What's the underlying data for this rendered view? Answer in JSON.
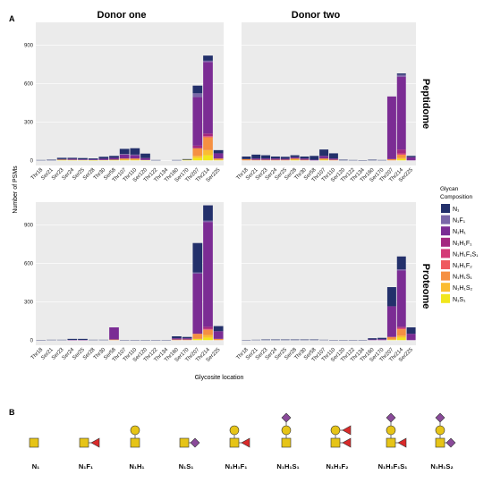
{
  "panel_labels": [
    "A",
    "B"
  ],
  "columns": [
    "Donor one",
    "Donor two"
  ],
  "rows": [
    "Peptidome",
    "Proteome"
  ],
  "legend": {
    "title_lines": [
      "Glycan",
      "Composition"
    ],
    "items": [
      {
        "label": "N₁",
        "color": "#23306b"
      },
      {
        "label": "N₁F₁",
        "color": "#7a67a8"
      },
      {
        "label": "N₁H₁",
        "color": "#7b2c94"
      },
      {
        "label": "N₁H₁F₁",
        "color": "#a4287f"
      },
      {
        "label": "N₁H₁F₁S₁",
        "color": "#d43a77"
      },
      {
        "label": "N₁H₁F₂",
        "color": "#ef5a5f"
      },
      {
        "label": "N₁H₁S₁",
        "color": "#f59042"
      },
      {
        "label": "N₁H₁S₂",
        "color": "#fbbc31"
      },
      {
        "label": "N₁S₁",
        "color": "#f1e61c"
      }
    ]
  },
  "glycans": [
    {
      "label": "N₁"
    },
    {
      "label": "N₁F₁"
    },
    {
      "label": "N₁H₁"
    },
    {
      "label": "N₁S₁"
    },
    {
      "label": "N₁H₁F₁"
    },
    {
      "label": "N₁H₁S₁"
    },
    {
      "label": "N₁H₁F₂"
    },
    {
      "label": "N₁H₁F₁S₁"
    },
    {
      "label": "N₁H₁S₂"
    }
  ],
  "chart_data": {
    "type": "bar",
    "stacked": true,
    "xlabel": "Glycosite location",
    "ylabel": "Number of PSMs",
    "yticks": [
      0,
      300,
      600,
      900
    ],
    "ylim": [
      -40,
      1080
    ],
    "categories": [
      "Thr18",
      "Ser21",
      "Ser23",
      "Ser24",
      "Ser25",
      "Ser28",
      "Thr30",
      "Ser58",
      "Thr107",
      "Thr110",
      "Ser120",
      "Thr122",
      "Thr134",
      "Thr160",
      "Ser170",
      "Thr207",
      "Thr214",
      "Ser225"
    ],
    "series_names": [
      "N₁",
      "N₁F₁",
      "N₁H₁",
      "N₁H₁F₁",
      "N₁H₁F₁S₁",
      "N₁H₁F₂",
      "N₁H₁S₁",
      "N₁H₁S₂",
      "N₁S₁"
    ],
    "panels": [
      {
        "row": "Peptidome",
        "column": "Donor one",
        "stacks": [
          [
            3,
            0,
            0,
            0,
            0,
            0,
            0,
            0,
            0
          ],
          [
            5,
            0,
            0,
            0,
            0,
            0,
            0,
            0,
            0
          ],
          [
            10,
            0,
            5,
            0,
            0,
            0,
            0,
            0,
            5
          ],
          [
            8,
            0,
            8,
            0,
            0,
            0,
            0,
            0,
            4
          ],
          [
            10,
            0,
            5,
            0,
            0,
            0,
            0,
            0,
            3
          ],
          [
            8,
            0,
            5,
            0,
            0,
            0,
            0,
            0,
            2
          ],
          [
            15,
            0,
            10,
            0,
            0,
            0,
            0,
            0,
            3
          ],
          [
            15,
            0,
            15,
            0,
            0,
            0,
            0,
            0,
            5
          ],
          [
            40,
            5,
            30,
            0,
            0,
            0,
            10,
            0,
            5
          ],
          [
            50,
            5,
            25,
            0,
            0,
            0,
            10,
            0,
            5
          ],
          [
            35,
            0,
            15,
            0,
            0,
            0,
            0,
            0,
            3
          ],
          [
            3,
            0,
            0,
            0,
            0,
            0,
            0,
            0,
            0
          ],
          [
            0,
            0,
            0,
            0,
            0,
            0,
            0,
            0,
            0
          ],
          [
            3,
            0,
            0,
            0,
            0,
            0,
            0,
            0,
            0
          ],
          [
            5,
            0,
            0,
            0,
            0,
            0,
            0,
            0,
            5
          ],
          [
            60,
            30,
            380,
            20,
            0,
            0,
            60,
            15,
            20
          ],
          [
            40,
            10,
            560,
            20,
            5,
            5,
            100,
            40,
            40
          ],
          [
            25,
            0,
            40,
            0,
            0,
            0,
            10,
            0,
            5
          ]
        ]
      },
      {
        "row": "Peptidome",
        "column": "Donor two",
        "stacks": [
          [
            20,
            0,
            0,
            0,
            0,
            0,
            10,
            0,
            0
          ],
          [
            30,
            0,
            10,
            0,
            0,
            0,
            5,
            0,
            0
          ],
          [
            25,
            0,
            10,
            0,
            0,
            0,
            5,
            0,
            0
          ],
          [
            15,
            0,
            10,
            0,
            0,
            0,
            5,
            0,
            0
          ],
          [
            15,
            0,
            8,
            0,
            0,
            0,
            5,
            0,
            0
          ],
          [
            15,
            0,
            10,
            0,
            0,
            0,
            10,
            0,
            5
          ],
          [
            15,
            0,
            10,
            0,
            0,
            0,
            5,
            0,
            0
          ],
          [
            30,
            0,
            5,
            0,
            0,
            0,
            0,
            0,
            0
          ],
          [
            50,
            0,
            20,
            0,
            0,
            0,
            10,
            0,
            5
          ],
          [
            40,
            0,
            10,
            0,
            0,
            0,
            5,
            0,
            0
          ],
          [
            5,
            0,
            0,
            0,
            0,
            0,
            0,
            0,
            0
          ],
          [
            3,
            0,
            0,
            0,
            0,
            0,
            0,
            0,
            0
          ],
          [
            2,
            0,
            0,
            0,
            0,
            0,
            0,
            0,
            0
          ],
          [
            5,
            0,
            0,
            0,
            0,
            0,
            0,
            0,
            0
          ],
          [
            3,
            0,
            0,
            0,
            0,
            0,
            0,
            0,
            0
          ],
          [
            0,
            0,
            490,
            0,
            0,
            0,
            10,
            0,
            0
          ],
          [
            10,
            15,
            570,
            30,
            10,
            0,
            25,
            10,
            10
          ],
          [
            10,
            0,
            25,
            0,
            0,
            0,
            0,
            0,
            0
          ]
        ]
      },
      {
        "row": "Proteome",
        "column": "Donor one",
        "stacks": [
          [
            2,
            0,
            0,
            0,
            0,
            0,
            0,
            0,
            0
          ],
          [
            3,
            0,
            0,
            0,
            0,
            0,
            0,
            0,
            0
          ],
          [
            3,
            0,
            0,
            0,
            0,
            0,
            0,
            0,
            0
          ],
          [
            8,
            0,
            2,
            0,
            0,
            0,
            0,
            0,
            0
          ],
          [
            8,
            0,
            2,
            0,
            0,
            0,
            0,
            0,
            0
          ],
          [
            3,
            0,
            0,
            0,
            0,
            0,
            0,
            0,
            0
          ],
          [
            3,
            0,
            0,
            0,
            0,
            0,
            0,
            0,
            0
          ],
          [
            0,
            0,
            95,
            0,
            0,
            0,
            5,
            0,
            0
          ],
          [
            2,
            0,
            0,
            0,
            0,
            0,
            0,
            0,
            0
          ],
          [
            2,
            0,
            0,
            0,
            0,
            0,
            0,
            0,
            0
          ],
          [
            2,
            0,
            0,
            0,
            0,
            0,
            0,
            0,
            0
          ],
          [
            2,
            0,
            0,
            0,
            0,
            0,
            0,
            0,
            0
          ],
          [
            2,
            0,
            0,
            0,
            0,
            0,
            0,
            0,
            0
          ],
          [
            15,
            0,
            10,
            0,
            0,
            0,
            5,
            0,
            0
          ],
          [
            10,
            0,
            10,
            0,
            0,
            0,
            5,
            0,
            0
          ],
          [
            230,
            10,
            470,
            0,
            0,
            0,
            40,
            0,
            10
          ],
          [
            120,
            10,
            820,
            15,
            5,
            5,
            40,
            20,
            20
          ],
          [
            40,
            0,
            60,
            0,
            0,
            0,
            10,
            0,
            0
          ]
        ]
      },
      {
        "row": "Proteome",
        "column": "Donor two",
        "stacks": [
          [
            2,
            0,
            0,
            0,
            0,
            0,
            0,
            0,
            0
          ],
          [
            3,
            0,
            0,
            0,
            0,
            0,
            0,
            0,
            0
          ],
          [
            5,
            0,
            0,
            0,
            0,
            0,
            0,
            0,
            0
          ],
          [
            5,
            0,
            0,
            0,
            0,
            0,
            0,
            0,
            0
          ],
          [
            5,
            0,
            0,
            0,
            0,
            0,
            0,
            0,
            0
          ],
          [
            5,
            0,
            0,
            0,
            0,
            0,
            0,
            0,
            0
          ],
          [
            5,
            0,
            0,
            0,
            0,
            0,
            0,
            0,
            0
          ],
          [
            5,
            0,
            0,
            0,
            0,
            0,
            0,
            0,
            0
          ],
          [
            3,
            0,
            0,
            0,
            0,
            0,
            0,
            0,
            0
          ],
          [
            2,
            0,
            0,
            0,
            0,
            0,
            0,
            0,
            0
          ],
          [
            2,
            0,
            0,
            0,
            0,
            0,
            0,
            0,
            0
          ],
          [
            2,
            0,
            0,
            0,
            0,
            0,
            0,
            0,
            0
          ],
          [
            2,
            0,
            0,
            0,
            0,
            0,
            0,
            0,
            0
          ],
          [
            10,
            0,
            5,
            0,
            0,
            0,
            0,
            0,
            0
          ],
          [
            10,
            0,
            8,
            0,
            0,
            0,
            0,
            0,
            0
          ],
          [
            150,
            0,
            240,
            0,
            0,
            0,
            20,
            0,
            5
          ],
          [
            100,
            10,
            440,
            10,
            5,
            5,
            50,
            15,
            20
          ],
          [
            50,
            0,
            50,
            0,
            0,
            0,
            0,
            0,
            0
          ]
        ]
      }
    ]
  }
}
